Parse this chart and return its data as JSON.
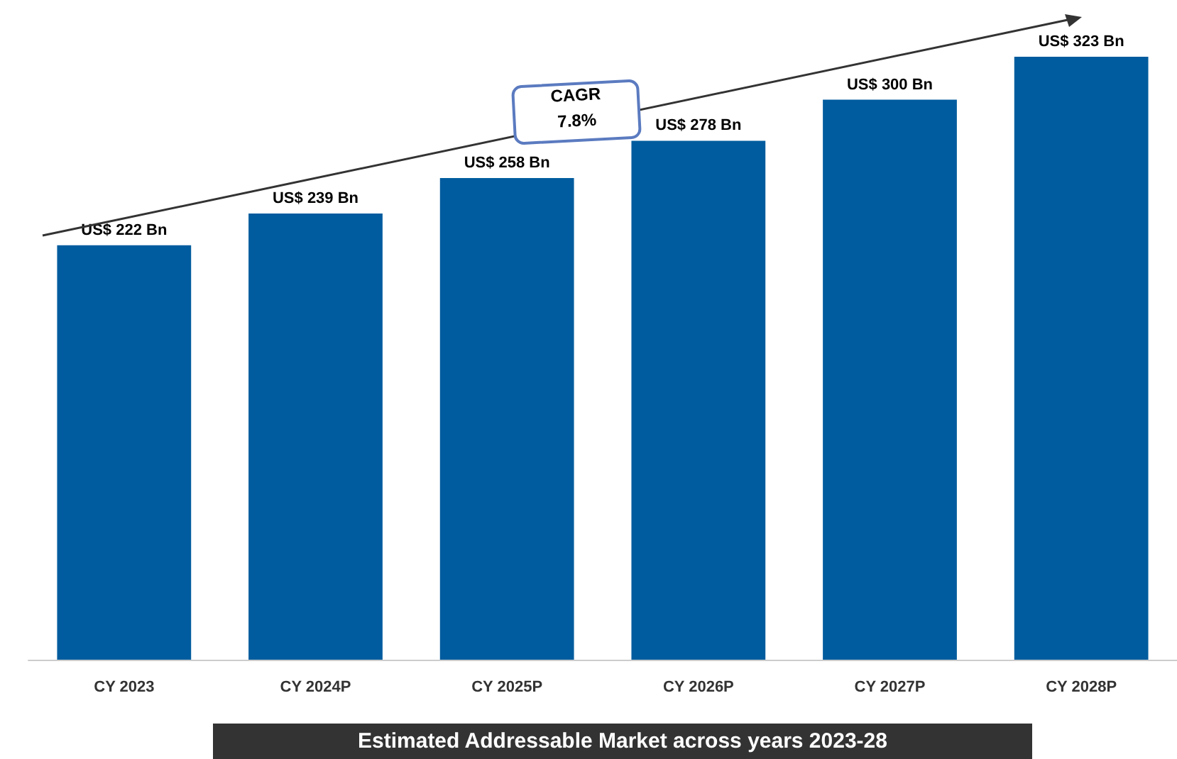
{
  "chart_data": {
    "type": "bar",
    "title": "Estimated Addressable Market across years 2023-28",
    "categories": [
      "CY 2023",
      "CY 2024P",
      "CY 2025P",
      "CY 2026P",
      "CY 2027P",
      "CY 2028P"
    ],
    "values": [
      222,
      239,
      258,
      278,
      300,
      323
    ],
    "value_labels": [
      "US$ 222 Bn",
      "US$ 239 Bn",
      "US$ 258 Bn",
      "US$ 278 Bn",
      "US$ 300 Bn",
      "US$ 323 Bn"
    ],
    "color": "#005c9e",
    "annotations": [
      "CAGR\n7.8%"
    ]
  }
}
